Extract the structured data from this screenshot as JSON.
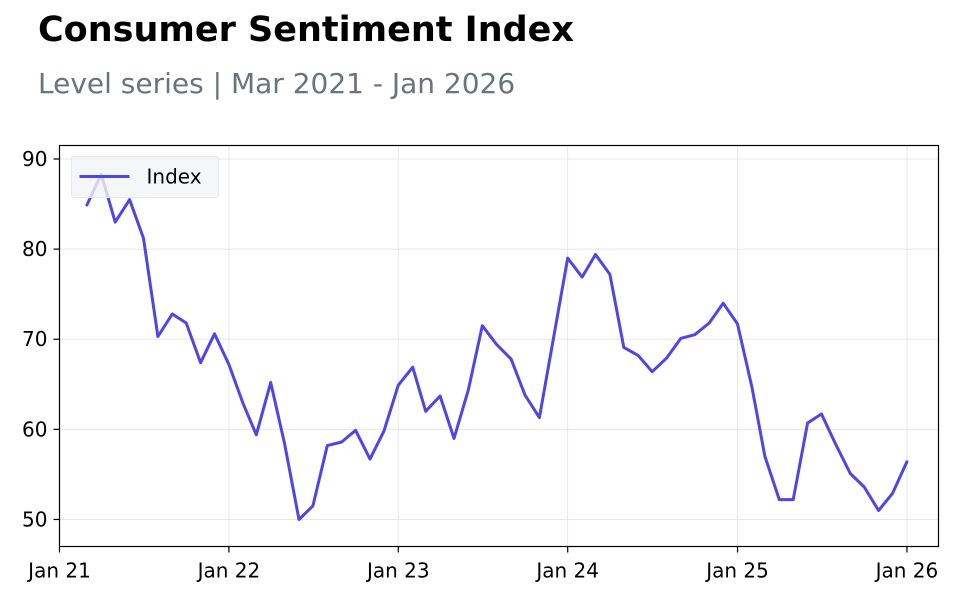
{
  "chart_data": {
    "type": "line",
    "title": "Consumer Sentiment Index",
    "subtitle": "Level series | Mar 2021 - Jan 2026",
    "xlabel": "",
    "ylabel": "",
    "x_range": [
      "2021-01-01",
      "2026-03-10"
    ],
    "ylim": [
      47,
      91.5
    ],
    "x_ticks": [
      {
        "date": "2021-01-01",
        "label": "Jan 21"
      },
      {
        "date": "2022-01-01",
        "label": "Jan 22"
      },
      {
        "date": "2023-01-01",
        "label": "Jan 23"
      },
      {
        "date": "2024-01-01",
        "label": "Jan 24"
      },
      {
        "date": "2025-01-01",
        "label": "Jan 25"
      },
      {
        "date": "2026-01-01",
        "label": "Jan 26"
      }
    ],
    "y_ticks": [
      50,
      60,
      70,
      80,
      90
    ],
    "grid": true,
    "legend": {
      "position": "top-left"
    },
    "series": [
      {
        "name": "Index",
        "color": "#4f46e5",
        "x": [
          "2021-03",
          "2021-04",
          "2021-05",
          "2021-06",
          "2021-07",
          "2021-08",
          "2021-09",
          "2021-10",
          "2021-11",
          "2021-12",
          "2022-01",
          "2022-02",
          "2022-03",
          "2022-04",
          "2022-05",
          "2022-06",
          "2022-07",
          "2022-08",
          "2022-09",
          "2022-10",
          "2022-11",
          "2022-12",
          "2023-01",
          "2023-02",
          "2023-03",
          "2023-04",
          "2023-05",
          "2023-06",
          "2023-07",
          "2023-08",
          "2023-09",
          "2023-10",
          "2023-11",
          "2023-12",
          "2024-01",
          "2024-02",
          "2024-03",
          "2024-04",
          "2024-05",
          "2024-06",
          "2024-07",
          "2024-08",
          "2024-09",
          "2024-10",
          "2024-11",
          "2024-12",
          "2025-01",
          "2025-02",
          "2025-03",
          "2025-04",
          "2025-05",
          "2025-06",
          "2025-07",
          "2025-08",
          "2025-09",
          "2025-10",
          "2025-11",
          "2025-12",
          "2026-01"
        ],
        "values": [
          84.9,
          88.3,
          83.0,
          85.5,
          81.2,
          70.3,
          72.8,
          71.8,
          67.4,
          70.6,
          67.2,
          62.8,
          59.4,
          65.2,
          58.4,
          50.0,
          51.5,
          58.2,
          58.6,
          59.9,
          56.7,
          59.8,
          64.9,
          66.9,
          62.0,
          63.7,
          59.0,
          64.4,
          71.5,
          69.4,
          67.8,
          63.8,
          61.3,
          70.0,
          79.0,
          76.9,
          79.4,
          77.2,
          69.1,
          68.2,
          66.4,
          67.9,
          70.1,
          70.5,
          71.8,
          74.0,
          71.7,
          64.7,
          57.0,
          52.2,
          52.2,
          60.7,
          61.7,
          58.3,
          55.1,
          53.6,
          51.0,
          52.9,
          56.4
        ]
      }
    ]
  }
}
